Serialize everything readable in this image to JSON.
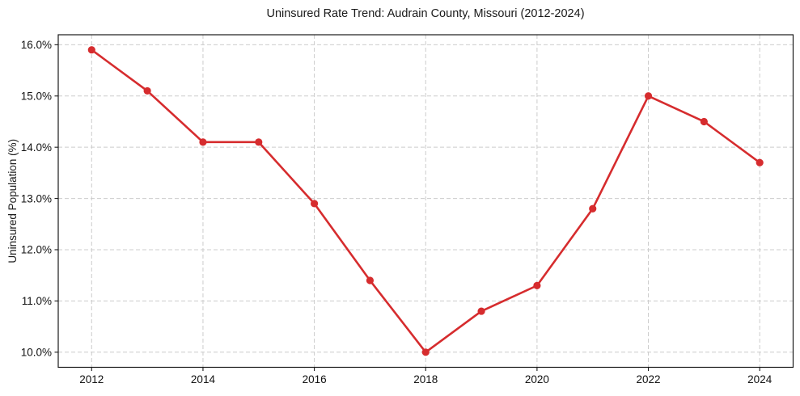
{
  "chart_data": {
    "type": "line",
    "title": "Uninsured Rate Trend: Audrain County, Missouri (2012-2024)",
    "xlabel": "",
    "ylabel": "Uninsured Population (%)",
    "x": [
      2012,
      2013,
      2014,
      2015,
      2016,
      2017,
      2018,
      2019,
      2020,
      2021,
      2022,
      2023,
      2024
    ],
    "values": [
      15.9,
      15.1,
      14.1,
      14.1,
      12.9,
      11.4,
      10.0,
      10.8,
      11.3,
      12.8,
      15.0,
      14.5,
      13.7
    ],
    "xticks": [
      2012,
      2014,
      2016,
      2018,
      2020,
      2022,
      2024
    ],
    "yticks": [
      10.0,
      11.0,
      12.0,
      13.0,
      14.0,
      15.0,
      16.0
    ],
    "ytick_suffix": "%",
    "ytick_decimals": 1,
    "xlim": [
      2011.4,
      2024.6
    ],
    "ylim": [
      9.705,
      16.195
    ],
    "grid": {
      "show": true,
      "style": "dashed",
      "color": "#cccccc"
    },
    "legend": "none",
    "marker": "circle",
    "colors": {
      "line": "#d62c2e",
      "axis": "#1a1a1a",
      "tick_label": "#111111",
      "background": "#ffffff"
    }
  }
}
